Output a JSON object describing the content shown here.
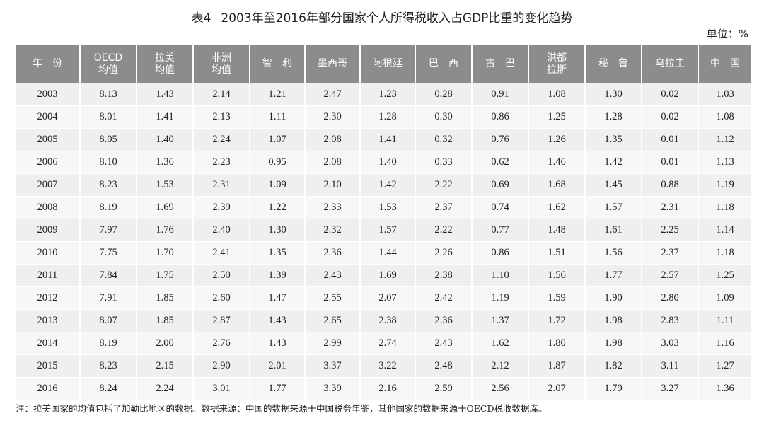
{
  "title": {
    "label": "表4",
    "text": "2003年至2016年部分国家个人所得税收入占GDP比重的变化趋势"
  },
  "unit": "单位：%",
  "table": {
    "headers": [
      "年　份",
      "OECD\n均值",
      "拉美\n均值",
      "非洲\n均值",
      "智　利",
      "墨西哥",
      "阿根廷",
      "巴　西",
      "古　巴",
      "洪都\n拉斯",
      "秘　鲁",
      "乌拉圭",
      "中　国"
    ],
    "rows": [
      [
        "2003",
        "8.13",
        "1.43",
        "2.14",
        "1.21",
        "2.47",
        "1.23",
        "0.28",
        "0.91",
        "1.08",
        "1.30",
        "0.02",
        "1.03"
      ],
      [
        "2004",
        "8.01",
        "1.41",
        "2.13",
        "1.11",
        "2.30",
        "1.28",
        "0.30",
        "0.86",
        "1.25",
        "1.28",
        "0.02",
        "1.08"
      ],
      [
        "2005",
        "8.05",
        "1.40",
        "2.24",
        "1.07",
        "2.08",
        "1.41",
        "0.32",
        "0.76",
        "1.26",
        "1.35",
        "0.01",
        "1.12"
      ],
      [
        "2006",
        "8.10",
        "1.36",
        "2.23",
        "0.95",
        "2.08",
        "1.40",
        "0.33",
        "0.62",
        "1.46",
        "1.42",
        "0.01",
        "1.13"
      ],
      [
        "2007",
        "8.23",
        "1.53",
        "2.31",
        "1.09",
        "2.10",
        "1.42",
        "2.22",
        "0.69",
        "1.68",
        "1.45",
        "0.88",
        "1.19"
      ],
      [
        "2008",
        "8.19",
        "1.69",
        "2.39",
        "1.22",
        "2.33",
        "1.53",
        "2.37",
        "0.74",
        "1.62",
        "1.57",
        "2.31",
        "1.18"
      ],
      [
        "2009",
        "7.97",
        "1.76",
        "2.40",
        "1.30",
        "2.32",
        "1.57",
        "2.22",
        "0.77",
        "1.48",
        "1.61",
        "2.25",
        "1.14"
      ],
      [
        "2010",
        "7.75",
        "1.70",
        "2.41",
        "1.35",
        "2.36",
        "1.44",
        "2.26",
        "0.86",
        "1.51",
        "1.56",
        "2.37",
        "1.18"
      ],
      [
        "2011",
        "7.84",
        "1.75",
        "2.50",
        "1.39",
        "2.43",
        "1.69",
        "2.38",
        "1.10",
        "1.56",
        "1.77",
        "2.57",
        "1.25"
      ],
      [
        "2012",
        "7.91",
        "1.85",
        "2.60",
        "1.47",
        "2.55",
        "2.07",
        "2.42",
        "1.19",
        "1.59",
        "1.90",
        "2.80",
        "1.09"
      ],
      [
        "2013",
        "8.07",
        "1.85",
        "2.87",
        "1.43",
        "2.65",
        "2.38",
        "2.36",
        "1.37",
        "1.72",
        "1.98",
        "2.83",
        "1.11"
      ],
      [
        "2014",
        "8.19",
        "2.00",
        "2.76",
        "1.43",
        "2.99",
        "2.74",
        "2.43",
        "1.62",
        "1.80",
        "1.98",
        "3.03",
        "1.16"
      ],
      [
        "2015",
        "8.23",
        "2.15",
        "2.90",
        "2.01",
        "3.37",
        "3.22",
        "2.48",
        "2.12",
        "1.87",
        "1.82",
        "3.11",
        "1.27"
      ],
      [
        "2016",
        "8.24",
        "2.24",
        "3.01",
        "1.77",
        "3.39",
        "2.16",
        "2.59",
        "2.56",
        "2.07",
        "1.79",
        "3.27",
        "1.36"
      ]
    ]
  },
  "note": "注：拉美国家的均值包括了加勒比地区的数据。数据来源：中国的数据来源于中国税务年鉴，其他国家的数据来源于OECD税收数据库。",
  "colors": {
    "header_bg": "#8c8c8c",
    "header_text": "#ffffff",
    "row_odd_bg": "#efefef",
    "row_even_bg": "#f7f7f7"
  }
}
